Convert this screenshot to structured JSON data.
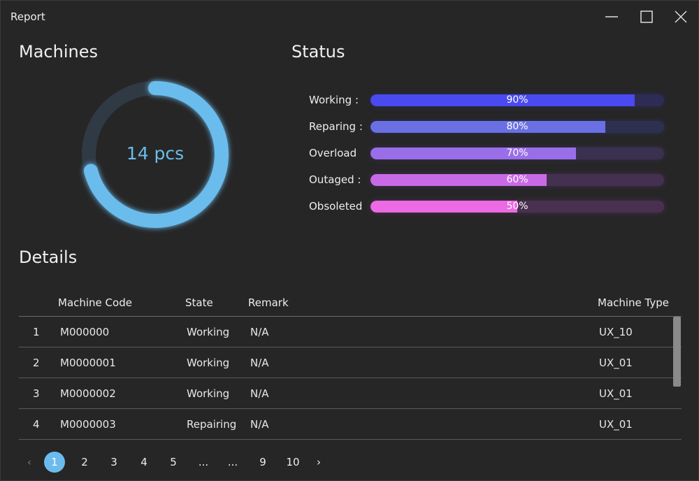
{
  "window": {
    "title": "Report"
  },
  "machines": {
    "heading": "Machines",
    "count_label": "14 pcs",
    "progress": 0.71,
    "color": "#6bbcec"
  },
  "status": {
    "heading": "Status",
    "items": [
      {
        "label": "Working :",
        "value": 90,
        "text": "90%",
        "color": "#4a4af0",
        "track": "#2c2c55"
      },
      {
        "label": "Reparing :",
        "value": 80,
        "text": "80%",
        "color": "#6a70e4",
        "track": "#2e3050"
      },
      {
        "label": "Overload",
        "value": 70,
        "text": "70%",
        "color": "#9a6ee8",
        "track": "#3a3050"
      },
      {
        "label": "Outaged :",
        "value": 60,
        "text": "60%",
        "color": "#c86ae6",
        "track": "#44304f"
      },
      {
        "label": "Obsoleted",
        "value": 50,
        "text": "50%",
        "color": "#ec6ae4",
        "track": "#4a3050"
      }
    ]
  },
  "details": {
    "heading": "Details",
    "columns": [
      "Machine Code",
      "State",
      "Remark",
      "Machine Type"
    ],
    "rows": [
      {
        "index": "1",
        "code": "M000000",
        "state": "Working",
        "remark": "N/A",
        "type": "UX_10"
      },
      {
        "index": "2",
        "code": "M0000001",
        "state": "Working",
        "remark": "N/A",
        "type": "UX_01"
      },
      {
        "index": "3",
        "code": "M0000002",
        "state": "Working",
        "remark": "N/A",
        "type": "UX_01"
      },
      {
        "index": "4",
        "code": "M0000003",
        "state": "Repairing",
        "remark": "N/A",
        "type": "UX_01"
      }
    ]
  },
  "pagination": {
    "pages": [
      "1",
      "2",
      "3",
      "4",
      "5",
      "...",
      "...",
      "9",
      "10"
    ],
    "current": "1"
  }
}
